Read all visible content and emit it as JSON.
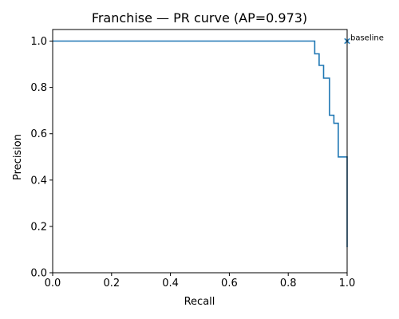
{
  "chart_data": {
    "type": "line",
    "title": "Franchise — PR curve (AP=0.973)",
    "xlabel": "Recall",
    "ylabel": "Precision",
    "xlim": [
      0.0,
      1.0
    ],
    "ylim": [
      0.0,
      1.05
    ],
    "xticks": [
      "0.0",
      "0.2",
      "0.4",
      "0.6",
      "0.8",
      "1.0"
    ],
    "yticks": [
      "0.0",
      "0.2",
      "0.4",
      "0.6",
      "0.8",
      "1.0"
    ],
    "grid": false,
    "color": "#1f77b4",
    "series": [
      {
        "step": "post",
        "points": [
          [
            0.0,
            1.0
          ],
          [
            0.89,
            1.0
          ],
          [
            0.89,
            0.945
          ],
          [
            0.905,
            0.945
          ],
          [
            0.905,
            0.895
          ],
          [
            0.92,
            0.895
          ],
          [
            0.92,
            0.84
          ],
          [
            0.94,
            0.84
          ],
          [
            0.94,
            0.68
          ],
          [
            0.955,
            0.68
          ],
          [
            0.955,
            0.645
          ],
          [
            0.97,
            0.645
          ],
          [
            0.97,
            0.5
          ],
          [
            0.99,
            0.5
          ],
          [
            0.99,
            0.5
          ],
          [
            1.0,
            0.5
          ],
          [
            1.0,
            0.11
          ]
        ]
      }
    ],
    "annotations": [
      {
        "text": "baseline",
        "marker": "x",
        "x": 1.0,
        "y": 1.0
      }
    ]
  }
}
